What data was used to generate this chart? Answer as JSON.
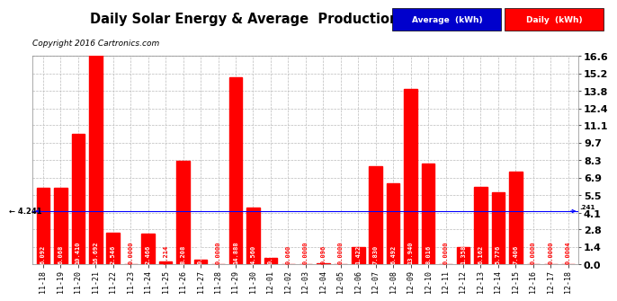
{
  "title": "Daily Solar Energy & Average  Production  Mon Dec 19  15:23",
  "copyright": "Copyright 2016 Cartronics.com",
  "categories": [
    "11-18",
    "11-19",
    "11-20",
    "11-21",
    "11-22",
    "11-23",
    "11-24",
    "11-25",
    "11-26",
    "11-27",
    "11-28",
    "11-29",
    "11-30",
    "12-01",
    "12-02",
    "12-03",
    "12-04",
    "12-05",
    "12-06",
    "12-07",
    "12-08",
    "12-09",
    "12-10",
    "12-11",
    "12-12",
    "12-13",
    "12-14",
    "12-15",
    "12-16",
    "12-17",
    "12-18"
  ],
  "values": [
    6.092,
    6.068,
    10.41,
    16.692,
    2.546,
    0.0,
    2.466,
    0.214,
    8.208,
    0.416,
    0.0,
    14.888,
    4.56,
    0.5,
    0.06,
    0.0,
    0.096,
    0.0,
    1.422,
    7.83,
    6.492,
    13.94,
    8.016,
    0.0,
    1.358,
    6.162,
    5.776,
    7.406,
    0.0,
    0.0,
    0.0004
  ],
  "average": 4.241,
  "yticks": [
    0.0,
    1.4,
    2.8,
    4.1,
    5.5,
    6.9,
    8.3,
    9.7,
    11.1,
    12.4,
    13.8,
    15.2,
    16.6
  ],
  "ymax": 16.6,
  "bar_color": "#ff0000",
  "avg_line_color": "#0000ff",
  "background_color": "#ffffff",
  "plot_bg_color": "#ffffff",
  "grid_color": "#bbbbbb",
  "title_fontsize": 10.5,
  "copyright_fontsize": 6.5,
  "tick_label_fontsize": 6,
  "value_fontsize": 5,
  "avg_label": "Average  (kWh)",
  "daily_label": "Daily  (kWh)",
  "legend_avg_color": "#0000cc",
  "legend_daily_color": "#ff0000"
}
